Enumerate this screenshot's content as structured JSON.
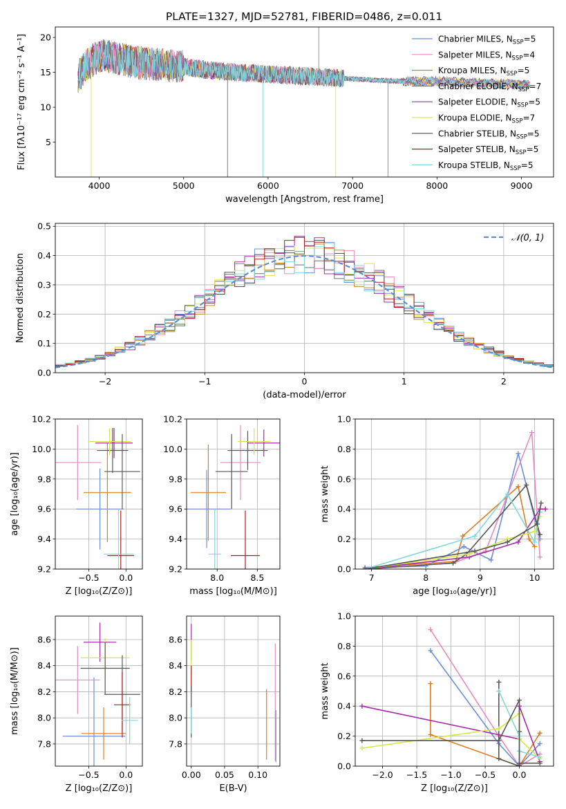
{
  "chart_data": [
    {
      "id": "spectrum",
      "type": "line",
      "title": "PLATE=1327, MJD=52781, FIBERID=0486, z=0.011",
      "xlabel": "wavelength [Angstrom, rest frame]",
      "ylabel": "Flux [fλ10⁻¹⁷ erg cm⁻² s⁻¹ A⁻¹]",
      "xlim": [
        3480,
        9380
      ],
      "ylim": [
        0,
        21.5
      ],
      "xticks": [
        "4000",
        "5000",
        "6000",
        "7000",
        "8000",
        "9000"
      ],
      "yticks": [
        "5",
        "10",
        "15",
        "20"
      ],
      "grid": false,
      "legend_position": "top-right",
      "legend": [
        {
          "name": "Chabrier MILES, N",
          "sub": "SSP",
          "rest": "=5",
          "color": "#6a8fd8"
        },
        {
          "name": "Salpeter MILES, N",
          "sub": "SSP",
          "rest": "=4",
          "color": "#e78ac3"
        },
        {
          "name": "Kroupa MILES, N",
          "sub": "SSP",
          "rest": "=5",
          "color": "#c0872d"
        },
        {
          "name": "Chabrier ELODIE, N",
          "sub": "SSP",
          "rest": "=7",
          "color": "#6e6e6e"
        },
        {
          "name": "Salpeter ELODIE, N",
          "sub": "SSP",
          "rest": "=5",
          "color": "#a42aa8"
        },
        {
          "name": "Kroupa ELODIE, N",
          "sub": "SSP",
          "rest": "=7",
          "color": "#e6e34e"
        },
        {
          "name": "Chabrier STELIB, N",
          "sub": "SSP",
          "rest": "=5",
          "color": "#555555"
        },
        {
          "name": "Salpeter STELIB, N",
          "sub": "SSP",
          "rest": "=5",
          "color": "#b01818"
        },
        {
          "name": "Kroupa STELIB, N",
          "sub": "SSP",
          "rest": "=5",
          "color": "#7fd8de"
        }
      ],
      "continuum": {
        "x": [
          3750,
          3850,
          3950,
          4050,
          4200,
          4400,
          4600,
          4800,
          5000,
          5300,
          5600,
          5900,
          6200,
          6500,
          6800,
          7100,
          7400,
          7700,
          8000,
          8400,
          8800,
          9100
        ],
        "y": [
          14.5,
          16.0,
          17.0,
          17.5,
          17.0,
          16.5,
          16.2,
          16.0,
          15.8,
          15.3,
          15.0,
          14.8,
          14.6,
          14.4,
          14.2,
          14.0,
          13.8,
          13.7,
          13.7,
          13.5,
          13.3,
          13.2
        ]
      },
      "noise_end": 6900
    },
    {
      "id": "residuals",
      "type": "histogram",
      "xlabel": "(data-model)/error",
      "ylabel": "Normed distribution",
      "xlim": [
        -2.5,
        2.5
      ],
      "ylim": [
        0,
        0.51
      ],
      "xticks": [
        "−2",
        "−1",
        "0",
        "1",
        "2"
      ],
      "yticks": [
        "0.0",
        "0.1",
        "0.2",
        "0.3",
        "0.4",
        "0.5"
      ],
      "grid": true,
      "legend": "𝒩(0, 1)",
      "legend_position": "top-right",
      "bin_width": 0.1,
      "normal_curve": {
        "mean": 0,
        "sigma": 1,
        "color": "#5b8fd4"
      }
    },
    {
      "id": "age-vs-Z",
      "type": "errorbar",
      "xlabel": "Z [log₁₀(Z/Z⊙)]",
      "ylabel": "age  [log₁₀(age/yr)]",
      "xlim": [
        -0.95,
        0.22
      ],
      "ylim": [
        9.2,
        10.2
      ],
      "xticks": [
        "−0.5",
        "0.0"
      ],
      "yticks": [
        "9.2",
        "9.4",
        "9.6",
        "9.8",
        "10.0",
        "10.2"
      ],
      "grid": true,
      "points": [
        {
          "x": -0.35,
          "xerr": 0.32,
          "y": 9.6,
          "yerr": 0.27,
          "color": "#6a8fd8"
        },
        {
          "x": -0.65,
          "xerr": 0.32,
          "y": 9.91,
          "yerr": 0.25,
          "color": "#e78ac3"
        },
        {
          "x": -0.25,
          "xerr": 0.32,
          "y": 9.71,
          "yerr": 0.33,
          "color": "#e07b20"
        },
        {
          "x": -0.18,
          "xerr": 0.21,
          "y": 9.99,
          "yerr": 0.15,
          "color": "#555555"
        },
        {
          "x": -0.16,
          "xerr": 0.25,
          "y": 10.04,
          "yerr": 0.1,
          "color": "#a42aa8"
        },
        {
          "x": -0.22,
          "xerr": 0.29,
          "y": 10.05,
          "yerr": 0.09,
          "color": "#d4e84a"
        },
        {
          "x": -0.05,
          "xerr": 0.24,
          "y": 9.85,
          "yerr": 0.25,
          "color": "#555555"
        },
        {
          "x": -0.07,
          "xerr": 0.18,
          "y": 9.29,
          "yerr": 0.3,
          "color": "#b01818"
        },
        {
          "x": -0.1,
          "xerr": 0.2,
          "y": 9.3,
          "yerr": 0.3,
          "color": "#7fd8de"
        }
      ]
    },
    {
      "id": "age-vs-mass",
      "type": "errorbar",
      "xlabel": "mass [log₁₀(M/M⊙)]",
      "ylabel": "",
      "xlim": [
        7.62,
        8.78
      ],
      "ylim": [
        9.2,
        10.2
      ],
      "xticks": [
        "8.0",
        "8.5"
      ],
      "yticks": [
        "9.2",
        "9.4",
        "9.6",
        "9.8",
        "10.0",
        "10.2"
      ],
      "grid": true,
      "points": [
        {
          "x": 7.87,
          "xerr": 0.3,
          "y": 9.6,
          "yerr": 0.26,
          "color": "#6a8fd8"
        },
        {
          "x": 8.29,
          "xerr": 0.25,
          "y": 9.91,
          "yerr": 0.25,
          "color": "#e78ac3"
        },
        {
          "x": 7.89,
          "xerr": 0.22,
          "y": 9.71,
          "yerr": 0.32,
          "color": "#e07b20"
        },
        {
          "x": 8.38,
          "xerr": 0.25,
          "y": 9.99,
          "yerr": 0.13,
          "color": "#555555"
        },
        {
          "x": 8.58,
          "xerr": 0.2,
          "y": 10.04,
          "yerr": 0.09,
          "color": "#a42aa8"
        },
        {
          "x": 8.46,
          "xerr": 0.2,
          "y": 10.05,
          "yerr": 0.09,
          "color": "#d4e84a"
        },
        {
          "x": 8.18,
          "xerr": 0.2,
          "y": 9.85,
          "yerr": 0.25,
          "color": "#555555"
        },
        {
          "x": 8.35,
          "xerr": 0.18,
          "y": 9.29,
          "yerr": 0.3,
          "color": "#b01818"
        },
        {
          "x": 7.97,
          "xerr": 0.08,
          "y": 9.3,
          "yerr": 0.3,
          "color": "#7fd8de"
        }
      ]
    },
    {
      "id": "weight-vs-age",
      "type": "line",
      "xlabel": "age  [log₁₀(age/yr)]",
      "ylabel": "mass weight",
      "xlim": [
        6.7,
        10.35
      ],
      "ylim": [
        0,
        1.0
      ],
      "xticks": [
        "7",
        "8",
        "9",
        "10"
      ],
      "yticks": [
        "0.0",
        "0.2",
        "0.4",
        "0.6",
        "0.8",
        "1.0"
      ],
      "grid": true,
      "series": [
        {
          "color": "#e07b20",
          "x": [
            6.88,
            8.55,
            8.68,
            9.7,
            9.9,
            10.0
          ],
          "y": [
            0.01,
            0.05,
            0.22,
            0.55,
            0.2,
            0.15
          ]
        },
        {
          "color": "#6a8fd8",
          "x": [
            6.88,
            8.0,
            8.7,
            9.2,
            9.7,
            10.1
          ],
          "y": [
            0.01,
            0.02,
            0.15,
            0.06,
            0.77,
            0.2
          ]
        },
        {
          "color": "#e78ac3",
          "x": [
            6.88,
            8.5,
            9.1,
            9.95,
            10.1
          ],
          "y": [
            0.0,
            0.04,
            0.12,
            0.91,
            0.08
          ]
        },
        {
          "color": "#555555",
          "x": [
            6.88,
            8.5,
            8.75,
            9.85,
            10.1
          ],
          "y": [
            0.0,
            0.04,
            0.1,
            0.56,
            0.23
          ]
        },
        {
          "color": "#a42aa8",
          "x": [
            6.88,
            8.8,
            9.7,
            10.1,
            10.2
          ],
          "y": [
            0.0,
            0.08,
            0.18,
            0.4,
            0.4
          ]
        },
        {
          "color": "#d4e84a",
          "x": [
            6.88,
            8.8,
            9.5,
            10.0,
            10.1
          ],
          "y": [
            0.0,
            0.1,
            0.2,
            0.25,
            0.35
          ]
        },
        {
          "color": "#7fd8de",
          "x": [
            6.88,
            8.9,
            9.5,
            10.0,
            10.1
          ],
          "y": [
            0.0,
            0.22,
            0.5,
            0.18,
            0.38
          ]
        },
        {
          "color": "#555555",
          "x": [
            6.88,
            8.9,
            9.5,
            10.05,
            10.12
          ],
          "y": [
            0.0,
            0.12,
            0.18,
            0.3,
            0.44
          ]
        }
      ]
    },
    {
      "id": "mass-vs-Z",
      "type": "errorbar",
      "xlabel": "Z [log₁₀(Z/Z⊙)]",
      "ylabel": "mass [log₁₀(M/M⊙)]",
      "xlim": [
        -0.95,
        0.22
      ],
      "ylim": [
        7.63,
        8.78
      ],
      "xticks": [
        "−0.5",
        "0.0"
      ],
      "yticks": [
        "7.8",
        "8.0",
        "8.2",
        "8.4",
        "8.6"
      ],
      "grid": true,
      "points": [
        {
          "x": -0.43,
          "xerr": 0.42,
          "y": 7.86,
          "yerr": 0.45,
          "color": "#6a8fd8"
        },
        {
          "x": -0.65,
          "xerr": 0.3,
          "y": 8.29,
          "yerr": 0.26,
          "color": "#e78ac3"
        },
        {
          "x": -0.3,
          "xerr": 0.3,
          "y": 7.88,
          "yerr": 0.2,
          "color": "#e07b20"
        },
        {
          "x": -0.35,
          "xerr": 0.22,
          "y": 8.58,
          "yerr": 0.15,
          "color": "#a42aa8"
        },
        {
          "x": -0.28,
          "xerr": 0.33,
          "y": 8.46,
          "yerr": 0.15,
          "color": "#d4e84a"
        },
        {
          "x": -0.28,
          "xerr": 0.33,
          "y": 8.38,
          "yerr": 0.2,
          "color": "#555555"
        },
        {
          "x": -0.05,
          "xerr": 0.24,
          "y": 8.18,
          "yerr": 0.3,
          "color": "#555555"
        },
        {
          "x": -0.05,
          "xerr": 0.11,
          "y": 8.1,
          "yerr": 0.25,
          "color": "#b01818"
        },
        {
          "x": 0.05,
          "xerr": 0.11,
          "y": 7.98,
          "yerr": 0.18,
          "color": "#7fd8de"
        }
      ]
    },
    {
      "id": "mass-vs-ebv",
      "type": "errorbar",
      "xlabel": "E(B-V)",
      "ylabel": "",
      "xlim": [
        -0.007,
        0.133
      ],
      "ylim": [
        7.63,
        8.78
      ],
      "xticks": [
        "0.00",
        "0.05",
        "0.10"
      ],
      "yticks": [
        "7.8",
        "8.0",
        "8.2",
        "8.4",
        "8.6"
      ],
      "grid": true,
      "points": [
        {
          "x": 0.0,
          "xerr": 0.0,
          "y": 8.58,
          "yerr": 0.14,
          "color": "#a42aa8"
        },
        {
          "x": 0.0,
          "xerr": 0.0,
          "y": 8.46,
          "yerr": 0.14,
          "color": "#d4e84a"
        },
        {
          "x": 0.0,
          "xerr": 0.0,
          "y": 8.3,
          "yerr": 0.1,
          "color": "#b01818"
        },
        {
          "x": 0.0,
          "xerr": 0.0,
          "y": 8.05,
          "yerr": 0.2,
          "color": "#555555"
        },
        {
          "x": 0.0,
          "xerr": 0.0,
          "y": 7.98,
          "yerr": 0.1,
          "color": "#7fd8de"
        },
        {
          "x": 0.126,
          "xerr": 0.0,
          "y": 8.12,
          "yerr": 0.45,
          "color": "#e78ac3"
        },
        {
          "x": 0.127,
          "xerr": 0.0,
          "y": 7.86,
          "yerr": 0.2,
          "color": "#6a8fd8"
        },
        {
          "x": 0.113,
          "xerr": 0.0,
          "y": 7.95,
          "yerr": 0.27,
          "color": "#e07b20"
        }
      ]
    },
    {
      "id": "weight-vs-Z",
      "type": "line",
      "xlabel": "Z [log₁₀(Z/Z⊙)]",
      "ylabel": "mass weight",
      "xlim": [
        -2.4,
        0.5
      ],
      "ylim": [
        0,
        1.0
      ],
      "xticks": [
        "−2.0",
        "−1.5",
        "−1.0",
        "−0.5",
        "0.0"
      ],
      "yticks": [
        "0.0",
        "0.2",
        "0.4",
        "0.6",
        "0.8",
        "1.0"
      ],
      "grid": true,
      "series": [
        {
          "color": "#e78ac3",
          "x": [
            -1.3,
            -0.3,
            0.0,
            0.3
          ],
          "y": [
            0.91,
            0.2,
            0.0,
            0.08
          ]
        },
        {
          "color": "#6a8fd8",
          "x": [
            -1.3,
            -0.3,
            0.0,
            0.3
          ],
          "y": [
            0.77,
            0.15,
            0.0,
            0.15
          ]
        },
        {
          "color": "#e07b20",
          "x": [
            -1.3,
            -1.3,
            0.0,
            0.3
          ],
          "y": [
            0.55,
            0.21,
            0.0,
            0.22
          ]
        },
        {
          "color": "#555555",
          "x": [
            -0.3,
            -0.3,
            0.0,
            0.0
          ],
          "y": [
            0.56,
            0.05,
            0.0,
            0.23
          ]
        },
        {
          "color": "#a42aa8",
          "x": [
            -2.3,
            0.0,
            0.0,
            0.3
          ],
          "y": [
            0.4,
            0.18,
            0.4,
            0.03
          ]
        },
        {
          "color": "#d4e84a",
          "x": [
            -2.3,
            -0.3,
            0.0,
            0.0,
            0.3
          ],
          "y": [
            0.12,
            0.25,
            0.35,
            0.18,
            0.05
          ]
        },
        {
          "color": "#7fd8de",
          "x": [
            -0.3,
            0.0,
            0.0,
            0.3
          ],
          "y": [
            0.5,
            0.2,
            0.1,
            0.06
          ]
        },
        {
          "color": "#555555",
          "x": [
            -2.3,
            -0.3,
            0.0,
            0.0,
            0.3
          ],
          "y": [
            0.17,
            0.17,
            0.44,
            0.02,
            0.02
          ]
        }
      ]
    }
  ]
}
